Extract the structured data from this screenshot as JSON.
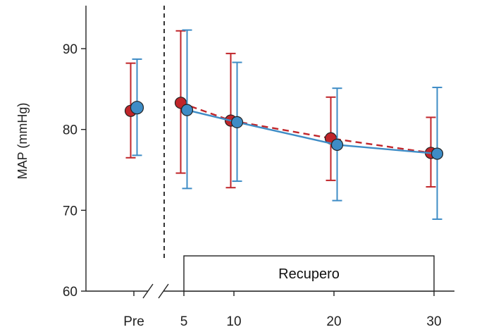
{
  "chart_data": {
    "type": "line",
    "title": "",
    "xlabel": "",
    "ylabel": "MAP (mmHg)",
    "ylim": [
      60,
      95
    ],
    "yticks": [
      60,
      70,
      80,
      90
    ],
    "xticks": [
      "Pre",
      "5",
      "10",
      "20",
      "30"
    ],
    "grid": false,
    "annotation_box": {
      "label": "Recupero",
      "x_start": "5",
      "x_end": "30"
    },
    "series": [
      {
        "color": "#c0252a",
        "line_style": "dashed",
        "points": [
          {
            "x": "Pre",
            "y": 82.3,
            "err_low": 76.5,
            "err_high": 88.2,
            "connected": false
          },
          {
            "x": "5",
            "y": 83.3,
            "err_low": 74.6,
            "err_high": 92.2,
            "connected": true
          },
          {
            "x": "10",
            "y": 81.1,
            "err_low": 72.8,
            "err_high": 89.4,
            "connected": true
          },
          {
            "x": "20",
            "y": 78.9,
            "err_low": 73.7,
            "err_high": 84.0,
            "connected": true
          },
          {
            "x": "30",
            "y": 77.1,
            "err_low": 72.9,
            "err_high": 81.5,
            "connected": true
          }
        ]
      },
      {
        "color": "#3e8cc6",
        "line_style": "solid",
        "points": [
          {
            "x": "Pre",
            "y": 82.7,
            "err_low": 76.8,
            "err_high": 88.7,
            "connected": false
          },
          {
            "x": "5",
            "y": 82.4,
            "err_low": 72.7,
            "err_high": 92.3,
            "connected": true
          },
          {
            "x": "10",
            "y": 80.9,
            "err_low": 73.6,
            "err_high": 88.3,
            "connected": true
          },
          {
            "x": "20",
            "y": 78.1,
            "err_low": 71.2,
            "err_high": 85.1,
            "connected": true
          },
          {
            "x": "30",
            "y": 77.0,
            "err_low": 68.9,
            "err_high": 85.2,
            "connected": true
          }
        ]
      }
    ]
  }
}
